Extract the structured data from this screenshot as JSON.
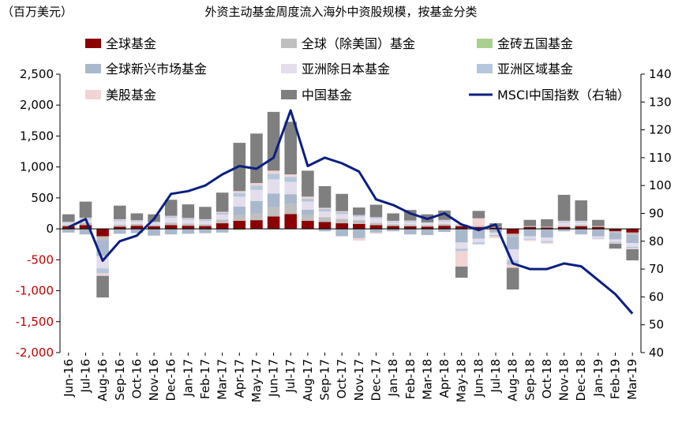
{
  "chart_data": {
    "type": "bar",
    "title": "外资主动基金周度流入海外中资股规模，按基金分类",
    "left_unit": "（百万美元）",
    "ylim_left": [
      -2000,
      2500
    ],
    "yticks_left": [
      "2,500",
      "2,000",
      "1,500",
      "1,000",
      "500",
      "0",
      "-500",
      "-1,000",
      "-1,500",
      "-2,000"
    ],
    "ylim_right": [
      40,
      140
    ],
    "yticks_right": [
      "140",
      "130",
      "120",
      "110",
      "100",
      "90",
      "80",
      "70",
      "60",
      "50",
      "40"
    ],
    "categories": [
      "Jun-16",
      "Jul-16",
      "Aug-16",
      "Sep-16",
      "Oct-16",
      "Nov-16",
      "Dec-16",
      "Jan-17",
      "Feb-17",
      "Mar-17",
      "Apr-17",
      "May-17",
      "Jun-17",
      "Jul-17",
      "Aug-17",
      "Sep-17",
      "Oct-17",
      "Nov-17",
      "Dec-17",
      "Jan-18",
      "Feb-18",
      "Mar-18",
      "Apr-18",
      "May-18",
      "Jun-18",
      "Jul-18",
      "Aug-18",
      "Sep-18",
      "Oct-18",
      "Nov-18",
      "Dec-18",
      "Jan-19",
      "Feb-19",
      "Mar-19"
    ],
    "legend": [
      {
        "label": "全球基金",
        "color": "#8B0000",
        "kind": "box"
      },
      {
        "label": "全球（除美国）基金",
        "color": "#BFBFBF",
        "kind": "box"
      },
      {
        "label": "金砖五国基金",
        "color": "#A9D18E",
        "kind": "box"
      },
      {
        "label": "全球新兴市场基金",
        "color": "#A9B8CC",
        "kind": "box"
      },
      {
        "label": "亚洲除日本基金",
        "color": "#E4DDEC",
        "kind": "box"
      },
      {
        "label": "亚洲区域基金",
        "color": "#B4C7DC",
        "kind": "box"
      },
      {
        "label": "美股基金",
        "color": "#F2D4D4",
        "kind": "box"
      },
      {
        "label": "中国基金",
        "color": "#7F7F7F",
        "kind": "box"
      },
      {
        "label": "MSCI中国指数（右轴）",
        "color": "#0B1F80",
        "kind": "line"
      }
    ],
    "series": [
      {
        "name": "全球基金",
        "values": [
          40,
          60,
          -120,
          35,
          50,
          40,
          60,
          50,
          45,
          90,
          130,
          140,
          200,
          240,
          130,
          110,
          90,
          80,
          60,
          45,
          40,
          35,
          50,
          40,
          30,
          20,
          -80,
          30,
          20,
          30,
          40,
          30,
          -40,
          -60
        ]
      },
      {
        "name": "全球（除美国）基金",
        "values": [
          25,
          40,
          -60,
          30,
          30,
          25,
          40,
          35,
          30,
          60,
          90,
          110,
          150,
          160,
          90,
          80,
          70,
          60,
          40,
          30,
          30,
          25,
          30,
          30,
          20,
          10,
          -50,
          15,
          15,
          20,
          25,
          15,
          -30,
          -40
        ]
      },
      {
        "name": "金砖五国基金",
        "values": [
          0,
          0,
          0,
          0,
          0,
          0,
          0,
          0,
          0,
          0,
          -20,
          0,
          0,
          0,
          0,
          0,
          0,
          0,
          0,
          0,
          0,
          0,
          0,
          0,
          0,
          0,
          0,
          0,
          0,
          0,
          0,
          0,
          0,
          0
        ]
      },
      {
        "name": "全球新兴市场基金",
        "values": [
          -60,
          -90,
          -260,
          -80,
          -70,
          -110,
          -90,
          -80,
          -70,
          -60,
          140,
          200,
          220,
          160,
          90,
          -40,
          -120,
          -150,
          -60,
          -40,
          -90,
          -100,
          -50,
          -220,
          -160,
          -60,
          -200,
          -120,
          -140,
          -40,
          -90,
          -120,
          -100,
          -130
        ]
      },
      {
        "name": "亚洲除日本基金",
        "values": [
          30,
          50,
          -200,
          60,
          40,
          30,
          80,
          60,
          50,
          80,
          160,
          180,
          230,
          200,
          130,
          90,
          80,
          60,
          70,
          30,
          40,
          30,
          40,
          -100,
          -60,
          -40,
          -180,
          -40,
          -60,
          50,
          40,
          -30,
          -40,
          -60
        ]
      },
      {
        "name": "亚洲区域基金",
        "values": [
          15,
          20,
          -80,
          20,
          15,
          15,
          20,
          20,
          20,
          30,
          60,
          70,
          90,
          80,
          50,
          40,
          30,
          25,
          20,
          15,
          15,
          10,
          15,
          -40,
          -30,
          -20,
          -70,
          -15,
          -20,
          20,
          15,
          -10,
          -20,
          -25
        ]
      },
      {
        "name": "美股基金",
        "values": [
          5,
          10,
          -40,
          10,
          5,
          5,
          10,
          10,
          10,
          15,
          30,
          40,
          50,
          40,
          30,
          20,
          15,
          -40,
          -20,
          10,
          10,
          5,
          10,
          -250,
          120,
          -30,
          -50,
          -20,
          -20,
          10,
          10,
          -10,
          -10,
          -15
        ]
      },
      {
        "name": "中国基金",
        "values": [
          120,
          260,
          -350,
          220,
          110,
          120,
          260,
          220,
          200,
          310,
          780,
          800,
          950,
          850,
          420,
          350,
          280,
          120,
          200,
          120,
          170,
          130,
          150,
          -180,
          120,
          60,
          -350,
          100,
          120,
          420,
          330,
          100,
          -80,
          -180
        ]
      }
    ],
    "msci_line": [
      85,
      88,
      73,
      80,
      82,
      88,
      97,
      98,
      100,
      104,
      107,
      106,
      110,
      127,
      107,
      110,
      108,
      105,
      95,
      93,
      90,
      88,
      90,
      86,
      84,
      86,
      72,
      70,
      70,
      72,
      71,
      66,
      61,
      54
    ]
  }
}
